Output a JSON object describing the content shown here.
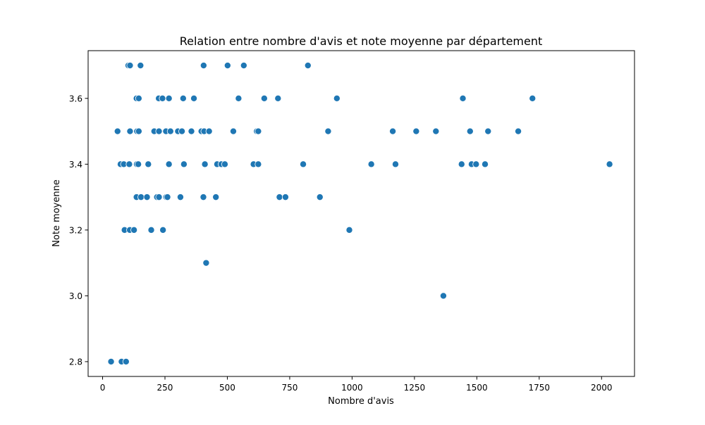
{
  "chart_data": {
    "type": "scatter",
    "title": "Relation entre nombre d'avis et note moyenne par département",
    "xlabel": "Nombre d'avis",
    "ylabel": "Note moyenne",
    "xlim": [
      -58,
      2132
    ],
    "ylim": [
      2.755,
      3.745
    ],
    "xticks": [
      0,
      250,
      500,
      750,
      1000,
      1250,
      1500,
      1750,
      2000
    ],
    "xtick_labels": [
      "0",
      "250",
      "500",
      "750",
      "1000",
      "1250",
      "1500",
      "1750",
      "2000"
    ],
    "yticks": [
      2.8,
      3.0,
      3.2,
      3.4,
      3.6
    ],
    "ytick_labels": [
      "2.8",
      "3.0",
      "3.2",
      "3.4",
      "3.6"
    ],
    "grid": false,
    "marker_color": "#1f77b4",
    "marker_edge_color": "#ffffff",
    "points": [
      {
        "x": 34,
        "y": 2.8
      },
      {
        "x": 76,
        "y": 2.8
      },
      {
        "x": 94,
        "y": 2.8
      },
      {
        "x": 60,
        "y": 3.5
      },
      {
        "x": 72,
        "y": 3.4
      },
      {
        "x": 85,
        "y": 3.4
      },
      {
        "x": 88,
        "y": 3.2
      },
      {
        "x": 103,
        "y": 3.7
      },
      {
        "x": 110,
        "y": 3.7
      },
      {
        "x": 107,
        "y": 3.4
      },
      {
        "x": 110,
        "y": 3.5
      },
      {
        "x": 109,
        "y": 3.2
      },
      {
        "x": 126,
        "y": 3.2
      },
      {
        "x": 136,
        "y": 3.6
      },
      {
        "x": 145,
        "y": 3.6
      },
      {
        "x": 138,
        "y": 3.5
      },
      {
        "x": 145,
        "y": 3.5
      },
      {
        "x": 137,
        "y": 3.4
      },
      {
        "x": 143,
        "y": 3.4
      },
      {
        "x": 136,
        "y": 3.3
      },
      {
        "x": 152,
        "y": 3.7
      },
      {
        "x": 154,
        "y": 3.3
      },
      {
        "x": 178,
        "y": 3.3
      },
      {
        "x": 183,
        "y": 3.4
      },
      {
        "x": 195,
        "y": 3.2
      },
      {
        "x": 207,
        "y": 3.5
      },
      {
        "x": 218,
        "y": 3.3
      },
      {
        "x": 225,
        "y": 3.6
      },
      {
        "x": 226,
        "y": 3.5
      },
      {
        "x": 226,
        "y": 3.3
      },
      {
        "x": 240,
        "y": 3.6
      },
      {
        "x": 242,
        "y": 3.2
      },
      {
        "x": 254,
        "y": 3.5
      },
      {
        "x": 255,
        "y": 3.3
      },
      {
        "x": 260,
        "y": 3.3
      },
      {
        "x": 266,
        "y": 3.6
      },
      {
        "x": 266,
        "y": 3.4
      },
      {
        "x": 272,
        "y": 3.5
      },
      {
        "x": 302,
        "y": 3.5
      },
      {
        "x": 312,
        "y": 3.3
      },
      {
        "x": 318,
        "y": 3.5
      },
      {
        "x": 323,
        "y": 3.6
      },
      {
        "x": 326,
        "y": 3.4
      },
      {
        "x": 356,
        "y": 3.5
      },
      {
        "x": 366,
        "y": 3.6
      },
      {
        "x": 396,
        "y": 3.5
      },
      {
        "x": 405,
        "y": 3.7
      },
      {
        "x": 404,
        "y": 3.3
      },
      {
        "x": 407,
        "y": 3.5
      },
      {
        "x": 410,
        "y": 3.4
      },
      {
        "x": 415,
        "y": 3.1
      },
      {
        "x": 427,
        "y": 3.5
      },
      {
        "x": 454,
        "y": 3.3
      },
      {
        "x": 459,
        "y": 3.4
      },
      {
        "x": 476,
        "y": 3.4
      },
      {
        "x": 490,
        "y": 3.4
      },
      {
        "x": 501,
        "y": 3.7
      },
      {
        "x": 524,
        "y": 3.5
      },
      {
        "x": 545,
        "y": 3.6
      },
      {
        "x": 566,
        "y": 3.7
      },
      {
        "x": 605,
        "y": 3.4
      },
      {
        "x": 618,
        "y": 3.5
      },
      {
        "x": 624,
        "y": 3.5
      },
      {
        "x": 624,
        "y": 3.4
      },
      {
        "x": 648,
        "y": 3.6
      },
      {
        "x": 703,
        "y": 3.6
      },
      {
        "x": 709,
        "y": 3.3
      },
      {
        "x": 733,
        "y": 3.3
      },
      {
        "x": 804,
        "y": 3.4
      },
      {
        "x": 823,
        "y": 3.7
      },
      {
        "x": 871,
        "y": 3.3
      },
      {
        "x": 904,
        "y": 3.5
      },
      {
        "x": 939,
        "y": 3.6
      },
      {
        "x": 989,
        "y": 3.2
      },
      {
        "x": 1077,
        "y": 3.4
      },
      {
        "x": 1163,
        "y": 3.5
      },
      {
        "x": 1174,
        "y": 3.4
      },
      {
        "x": 1257,
        "y": 3.5
      },
      {
        "x": 1336,
        "y": 3.5
      },
      {
        "x": 1366,
        "y": 3.0
      },
      {
        "x": 1439,
        "y": 3.4
      },
      {
        "x": 1444,
        "y": 3.6
      },
      {
        "x": 1473,
        "y": 3.5
      },
      {
        "x": 1479,
        "y": 3.4
      },
      {
        "x": 1497,
        "y": 3.4
      },
      {
        "x": 1533,
        "y": 3.4
      },
      {
        "x": 1545,
        "y": 3.5
      },
      {
        "x": 1666,
        "y": 3.5
      },
      {
        "x": 1723,
        "y": 3.6
      },
      {
        "x": 2032,
        "y": 3.4
      }
    ]
  }
}
